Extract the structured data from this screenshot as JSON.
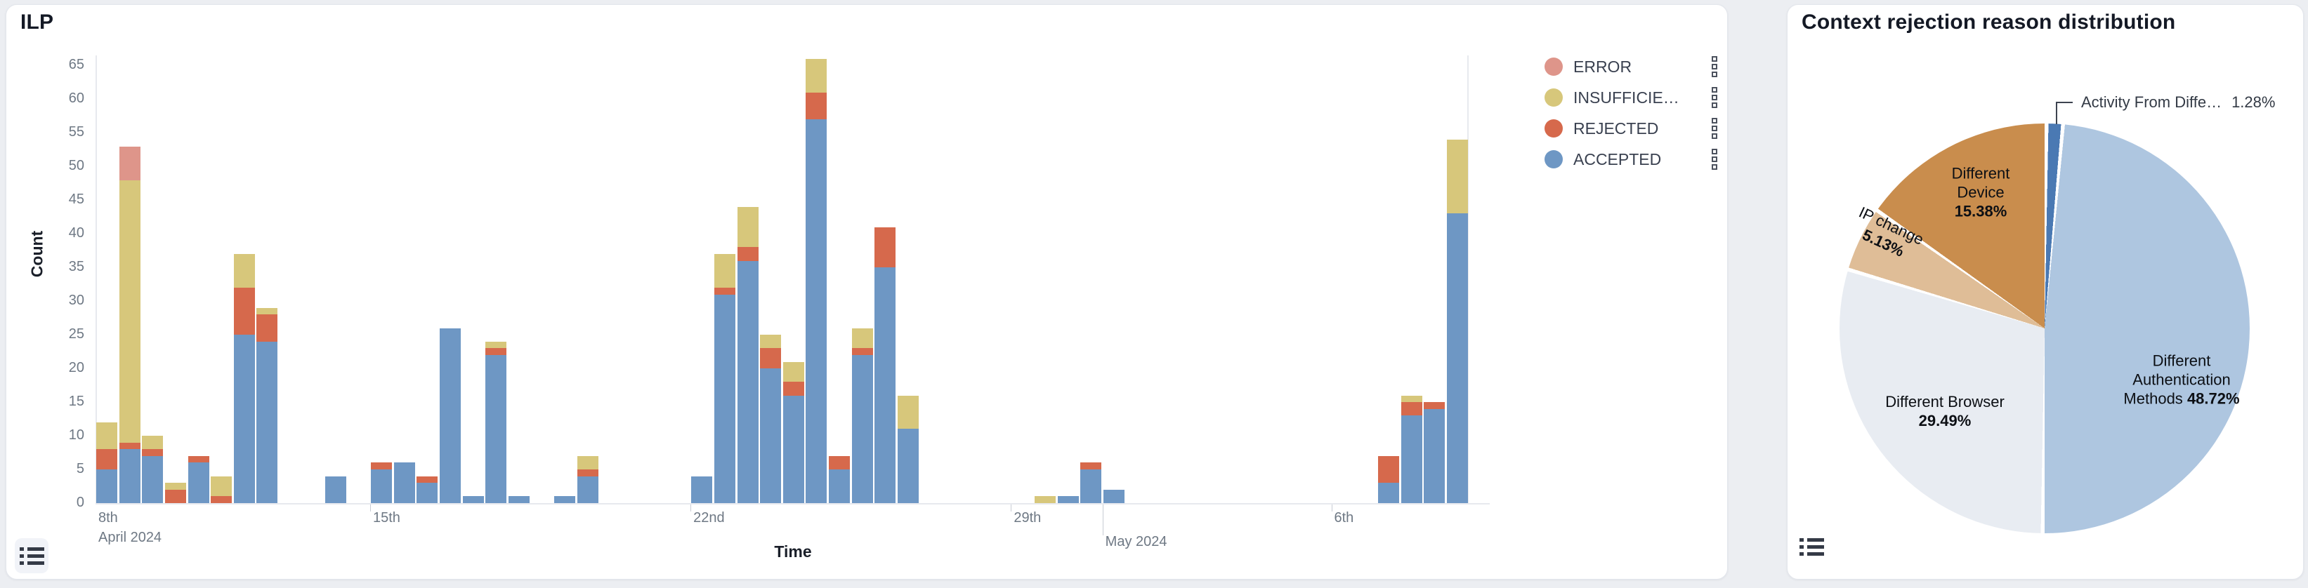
{
  "left_panel": {
    "title": "ILP",
    "x_axis_label": "Time",
    "y_axis_label": "Count",
    "list_button": "chart-options"
  },
  "right_panel": {
    "title": "Context rejection reason distribution",
    "list_button": "chart-options"
  },
  "chart_data": [
    {
      "type": "bar",
      "title": "ILP",
      "xlabel": "Time",
      "ylabel": "Count",
      "ylim": [
        0,
        65
      ],
      "y_ticks": [
        0,
        5,
        10,
        15,
        20,
        25,
        30,
        35,
        40,
        45,
        50,
        55,
        60,
        65
      ],
      "grid": false,
      "stack_order_bottom_to_top": [
        "ACCEPTED",
        "REJECTED",
        "INSUFFICIENT",
        "ERROR"
      ],
      "legend_position": "right",
      "legend": [
        {
          "label": "ERROR",
          "color": "#DE958A"
        },
        {
          "label": "INSUFFICIE…",
          "color": "#D7C77B"
        },
        {
          "label": "REJECTED",
          "color": "#D6694C"
        },
        {
          "label": "ACCEPTED",
          "color": "#6E97C4"
        }
      ],
      "x_slots": 60,
      "x_unit": "12-hour time bins, 2024-04-08 to 2024-05-08",
      "x_ticks": [
        {
          "slot": 0,
          "label": "8th",
          "sublabel": "April 2024"
        },
        {
          "slot": 12,
          "label": "15th"
        },
        {
          "slot": 26,
          "label": "22nd"
        },
        {
          "slot": 40,
          "label": "29th"
        },
        {
          "slot": 44,
          "label": "May 2024",
          "row": 2,
          "long": true
        },
        {
          "slot": 54,
          "label": "6th"
        }
      ],
      "bars": [
        {
          "slot": 0,
          "accepted": 5,
          "rejected": 3,
          "insufficient": 4,
          "error": 0
        },
        {
          "slot": 1,
          "accepted": 8,
          "rejected": 1,
          "insufficient": 39,
          "error": 5
        },
        {
          "slot": 2,
          "accepted": 7,
          "rejected": 1,
          "insufficient": 2,
          "error": 0
        },
        {
          "slot": 3,
          "accepted": 0,
          "rejected": 2,
          "insufficient": 1,
          "error": 0
        },
        {
          "slot": 4,
          "accepted": 6,
          "rejected": 1,
          "insufficient": 0,
          "error": 0
        },
        {
          "slot": 5,
          "accepted": 0,
          "rejected": 1,
          "insufficient": 3,
          "error": 0
        },
        {
          "slot": 6,
          "accepted": 25,
          "rejected": 7,
          "insufficient": 5,
          "error": 0
        },
        {
          "slot": 7,
          "accepted": 24,
          "rejected": 4,
          "insufficient": 1,
          "error": 0
        },
        {
          "slot": 10,
          "accepted": 4,
          "rejected": 0,
          "insufficient": 0,
          "error": 0
        },
        {
          "slot": 12,
          "accepted": 5,
          "rejected": 1,
          "insufficient": 0,
          "error": 0
        },
        {
          "slot": 13,
          "accepted": 6,
          "rejected": 0,
          "insufficient": 0,
          "error": 0
        },
        {
          "slot": 14,
          "accepted": 3,
          "rejected": 1,
          "insufficient": 0,
          "error": 0
        },
        {
          "slot": 15,
          "accepted": 26,
          "rejected": 0,
          "insufficient": 0,
          "error": 0
        },
        {
          "slot": 16,
          "accepted": 1,
          "rejected": 0,
          "insufficient": 0,
          "error": 0
        },
        {
          "slot": 17,
          "accepted": 22,
          "rejected": 1,
          "insufficient": 1,
          "error": 0
        },
        {
          "slot": 18,
          "accepted": 1,
          "rejected": 0,
          "insufficient": 0,
          "error": 0
        },
        {
          "slot": 20,
          "accepted": 1,
          "rejected": 0,
          "insufficient": 0,
          "error": 0
        },
        {
          "slot": 21,
          "accepted": 4,
          "rejected": 1,
          "insufficient": 2,
          "error": 0
        },
        {
          "slot": 26,
          "accepted": 4,
          "rejected": 0,
          "insufficient": 0,
          "error": 0
        },
        {
          "slot": 27,
          "accepted": 31,
          "rejected": 1,
          "insufficient": 5,
          "error": 0
        },
        {
          "slot": 28,
          "accepted": 36,
          "rejected": 2,
          "insufficient": 6,
          "error": 0
        },
        {
          "slot": 29,
          "accepted": 20,
          "rejected": 3,
          "insufficient": 2,
          "error": 0
        },
        {
          "slot": 30,
          "accepted": 16,
          "rejected": 2,
          "insufficient": 3,
          "error": 0
        },
        {
          "slot": 31,
          "accepted": 57,
          "rejected": 4,
          "insufficient": 5,
          "error": 0
        },
        {
          "slot": 32,
          "accepted": 5,
          "rejected": 2,
          "insufficient": 0,
          "error": 0
        },
        {
          "slot": 33,
          "accepted": 22,
          "rejected": 1,
          "insufficient": 3,
          "error": 0
        },
        {
          "slot": 34,
          "accepted": 35,
          "rejected": 6,
          "insufficient": 0,
          "error": 0
        },
        {
          "slot": 35,
          "accepted": 11,
          "rejected": 0,
          "insufficient": 5,
          "error": 0
        },
        {
          "slot": 41,
          "accepted": 0,
          "rejected": 0,
          "insufficient": 1,
          "error": 0
        },
        {
          "slot": 42,
          "accepted": 1,
          "rejected": 0,
          "insufficient": 0,
          "error": 0
        },
        {
          "slot": 43,
          "accepted": 5,
          "rejected": 1,
          "insufficient": 0,
          "error": 0
        },
        {
          "slot": 44,
          "accepted": 2,
          "rejected": 0,
          "insufficient": 0,
          "error": 0
        },
        {
          "slot": 56,
          "accepted": 3,
          "rejected": 4,
          "insufficient": 0,
          "error": 0
        },
        {
          "slot": 57,
          "accepted": 13,
          "rejected": 2,
          "insufficient": 1,
          "error": 0
        },
        {
          "slot": 58,
          "accepted": 14,
          "rejected": 1,
          "insufficient": 0,
          "error": 0
        },
        {
          "slot": 59,
          "accepted": 43,
          "rejected": 0,
          "insufficient": 11,
          "error": 0
        }
      ],
      "series_colors": {
        "accepted": "#6E97C4",
        "rejected": "#D6694C",
        "insufficient": "#D7C77B",
        "error": "#DE958A"
      }
    },
    {
      "type": "pie",
      "title": "Context rejection reason distribution",
      "start_angle_deg": 0,
      "direction": "clockwise",
      "slices": [
        {
          "label": "Activity From Diffe…",
          "pct": 1.28,
          "pct_text": "1.28%",
          "color": "#4A79B3",
          "external_label": true
        },
        {
          "label": "Different Authentication Methods",
          "line1": "Different",
          "line2": "Authentication",
          "line3": "Methods",
          "pct": 48.72,
          "pct_text": "48.72%",
          "color": "#AEC6E0"
        },
        {
          "label": "Different Browser",
          "line1": "Different Browser",
          "pct": 29.49,
          "pct_text": "29.49%",
          "color": "#E8ECF2"
        },
        {
          "label": "IP change",
          "line1": "IP change",
          "pct": 5.13,
          "pct_text": "5.13%",
          "color": "#DFBD97"
        },
        {
          "label": "Different Device",
          "line1": "Different",
          "line2": "Device",
          "pct": 15.38,
          "pct_text": "15.38%",
          "color": "#C98D4D"
        }
      ]
    }
  ]
}
